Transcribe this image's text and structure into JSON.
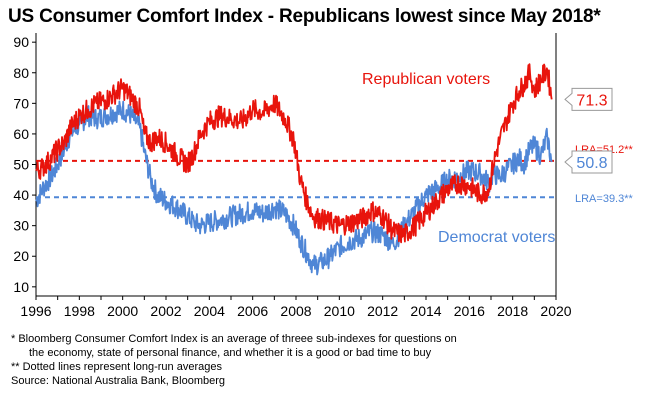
{
  "title": "US Consumer Comfort Index - Republicans lowest since May 2018*",
  "chart_data": {
    "type": "line",
    "title": "US Consumer Comfort Index - Republicans lowest since May 2018*",
    "xlabel": "",
    "ylabel": "",
    "xlim": [
      1996,
      2020
    ],
    "ylim": [
      7,
      93
    ],
    "x_ticks": [
      "1996",
      "1998",
      "2000",
      "2002",
      "2004",
      "2006",
      "2008",
      "2010",
      "2012",
      "2014",
      "2016",
      "2018",
      "2020"
    ],
    "y_ticks": [
      "10",
      "20",
      "30",
      "40",
      "50",
      "60",
      "70",
      "80",
      "90"
    ],
    "grid": false,
    "series": [
      {
        "name": "Republican voters",
        "color": "#e8140c",
        "x": [
          1996.0,
          1996.3,
          1996.7,
          1997.0,
          1997.3,
          1997.6,
          1998.0,
          1998.4,
          1998.8,
          1999.2,
          1999.6,
          2000.0,
          2000.4,
          2000.8,
          2001.0,
          2001.3,
          2001.6,
          2002.0,
          2002.5,
          2003.0,
          2003.3,
          2003.6,
          2004.0,
          2004.5,
          2005.0,
          2005.5,
          2006.0,
          2006.5,
          2007.0,
          2007.5,
          2007.9,
          2008.2,
          2008.5,
          2008.8,
          2009.2,
          2009.6,
          2010.0,
          2010.5,
          2011.0,
          2011.5,
          2012.0,
          2012.5,
          2013.0,
          2013.5,
          2014.0,
          2014.5,
          2015.0,
          2015.5,
          2016.0,
          2016.5,
          2016.9,
          2017.1,
          2017.4,
          2017.7,
          2018.0,
          2018.3,
          2018.5,
          2018.8,
          2019.0,
          2019.3,
          2019.6,
          2019.8
        ],
        "values": [
          48,
          49,
          52,
          55,
          57,
          62,
          66,
          68,
          70,
          71,
          73,
          75,
          72,
          68,
          60,
          57,
          59,
          57,
          53,
          50,
          54,
          60,
          64,
          66,
          65,
          64,
          68,
          67,
          70,
          65,
          58,
          45,
          38,
          33,
          32,
          31,
          30,
          31,
          32,
          35,
          33,
          28,
          27,
          30,
          34,
          38,
          42,
          44,
          43,
          40,
          42,
          50,
          58,
          64,
          70,
          74,
          76,
          80,
          74,
          78,
          81,
          71.3
        ]
      },
      {
        "name": "Democrat voters",
        "color": "#4f86d6",
        "x": [
          1996.0,
          1996.3,
          1996.7,
          1997.0,
          1997.3,
          1997.6,
          1998.0,
          1998.4,
          1998.8,
          1999.2,
          1999.6,
          2000.0,
          2000.4,
          2000.8,
          2001.0,
          2001.3,
          2001.6,
          2002.0,
          2002.5,
          2003.0,
          2003.3,
          2003.6,
          2004.0,
          2004.5,
          2005.0,
          2005.5,
          2006.0,
          2006.5,
          2007.0,
          2007.5,
          2007.9,
          2008.2,
          2008.5,
          2008.8,
          2009.2,
          2009.6,
          2010.0,
          2010.5,
          2011.0,
          2011.5,
          2012.0,
          2012.5,
          2013.0,
          2013.5,
          2014.0,
          2014.5,
          2015.0,
          2015.5,
          2016.0,
          2016.5,
          2016.9,
          2017.1,
          2017.4,
          2017.7,
          2018.0,
          2018.3,
          2018.5,
          2018.8,
          2019.0,
          2019.3,
          2019.6,
          2019.8
        ],
        "values": [
          38,
          42,
          46,
          50,
          55,
          60,
          63,
          66,
          65,
          66,
          67,
          68,
          66,
          62,
          54,
          45,
          40,
          38,
          36,
          33,
          31,
          30,
          31,
          32,
          33,
          34,
          35,
          34,
          36,
          34,
          30,
          25,
          21,
          17,
          18,
          20,
          23,
          25,
          26,
          28,
          27,
          24,
          30,
          35,
          40,
          42,
          45,
          46,
          48,
          47,
          44,
          47,
          46,
          48,
          50,
          52,
          50,
          55,
          56,
          53,
          59,
          50.8
        ]
      }
    ],
    "reference_lines": [
      {
        "label": "LRA=51.2**",
        "value": 51.2,
        "color": "#e8140c",
        "style": "dashed"
      },
      {
        "label": "LRA=39.3**",
        "value": 39.3,
        "color": "#4f86d6",
        "style": "dashed"
      }
    ],
    "annotations": [
      {
        "text": "Republican voters",
        "color": "#e8140c"
      },
      {
        "text": "Democrat voters",
        "color": "#4f86d6"
      }
    ],
    "end_labels": [
      {
        "text": "71.3",
        "value": 71.3,
        "color": "#e8140c"
      },
      {
        "text": "50.8",
        "value": 50.8,
        "color": "#4f86d6"
      }
    ]
  },
  "footnotes": {
    "line1": "*  Bloomberg Consumer Comfort Index is an average of threee sub-indexes for questions on",
    "line2": "the economy, state of personal finance, and whether it is a good or bad time to buy",
    "line3": "** Dotted lines represent long-run averages",
    "line4": "Source: National Australia Bank, Bloomberg"
  }
}
